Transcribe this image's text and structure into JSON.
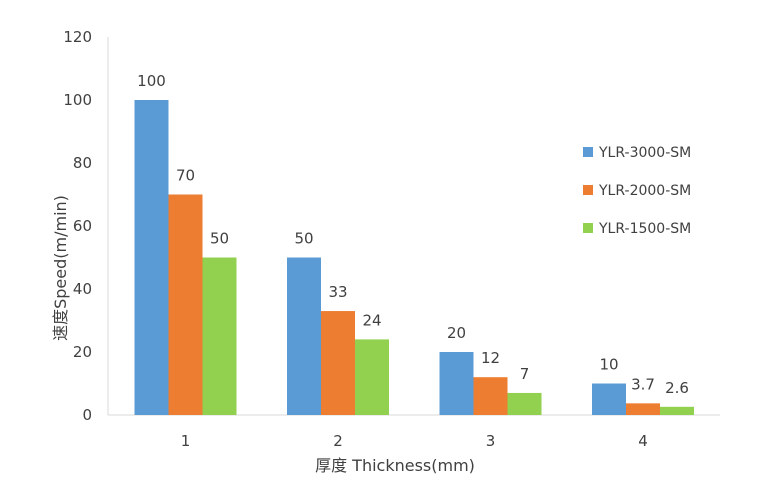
{
  "chart_data": {
    "type": "bar",
    "categories": [
      "1",
      "2",
      "3",
      "4"
    ],
    "series": [
      {
        "name": "YLR-3000-SM",
        "values": [
          100,
          50,
          20,
          10
        ],
        "labels": [
          "100",
          "50",
          "20",
          "10"
        ],
        "color": "#5B9BD5"
      },
      {
        "name": "YLR-2000-SM",
        "values": [
          70,
          33,
          12,
          3.7
        ],
        "labels": [
          "70",
          "33",
          "12",
          "3.7"
        ],
        "color": "#ED7D31"
      },
      {
        "name": "YLR-1500-SM",
        "values": [
          50,
          24,
          7,
          2.6
        ],
        "labels": [
          "50",
          "24",
          "7",
          "2.6"
        ],
        "color": "#92D050"
      }
    ],
    "xlabel": "厚度 Thickness(mm)",
    "ylabel": "速度Speed(m/min)",
    "ylim": [
      0,
      120
    ],
    "yticks": [
      0,
      20,
      40,
      60,
      80,
      100,
      120
    ],
    "grid": false,
    "legend": "right"
  }
}
